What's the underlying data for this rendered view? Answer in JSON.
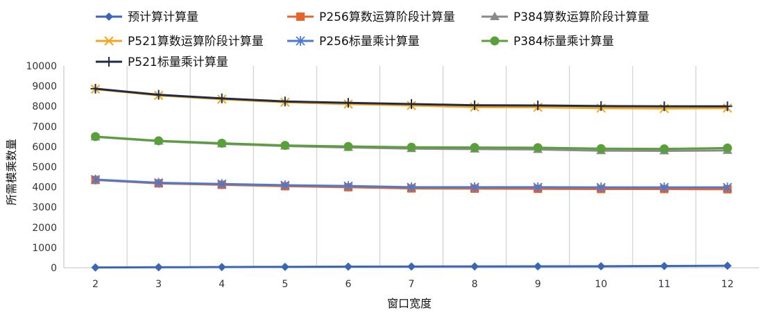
{
  "chart_data": {
    "type": "line",
    "title": "",
    "xlabel": "窗口宽度",
    "ylabel": "所需模乘数量",
    "x": [
      2,
      3,
      4,
      5,
      6,
      7,
      8,
      9,
      10,
      11,
      12
    ],
    "ylim": [
      0,
      10000
    ],
    "yticks": [
      0,
      1000,
      2000,
      3000,
      4000,
      5000,
      6000,
      7000,
      8000,
      9000,
      10000
    ],
    "grid": "vertical",
    "legend": "top",
    "series": [
      {
        "name": "预计算计算量",
        "color": "#3a66b5",
        "marker": "diamond",
        "values": [
          15,
          25,
          35,
          45,
          55,
          60,
          65,
          70,
          75,
          85,
          100
        ]
      },
      {
        "name": "P256算数运算阶段计算量",
        "color": "#e8642a",
        "marker": "square",
        "values": [
          4350,
          4180,
          4110,
          4040,
          3990,
          3930,
          3920,
          3910,
          3900,
          3900,
          3890
        ]
      },
      {
        "name": "P384算数运算阶段计算量",
        "color": "#8a8a8a",
        "marker": "triangle",
        "values": [
          6480,
          6270,
          6140,
          6030,
          5960,
          5900,
          5880,
          5860,
          5800,
          5790,
          5810
        ]
      },
      {
        "name": "P521算数运算阶段计算量",
        "color": "#f2a51f",
        "marker": "x",
        "values": [
          8850,
          8540,
          8350,
          8200,
          8110,
          8040,
          7960,
          7950,
          7910,
          7890,
          7910
        ]
      },
      {
        "name": "P256标量乘计算量",
        "color": "#4a7bd0",
        "marker": "asterisk",
        "values": [
          4370,
          4210,
          4150,
          4090,
          4050,
          3990,
          3990,
          3990,
          3980,
          3980,
          3980
        ]
      },
      {
        "name": "P384标量乘计算量",
        "color": "#5aa03a",
        "marker": "circle",
        "values": [
          6500,
          6290,
          6170,
          6060,
          6010,
          5970,
          5960,
          5950,
          5900,
          5890,
          5930
        ]
      },
      {
        "name": "P521标量乘计算量",
        "color": "#1f2a44",
        "marker": "plus",
        "values": [
          8870,
          8570,
          8390,
          8240,
          8170,
          8110,
          8050,
          8040,
          8010,
          8000,
          8000
        ]
      }
    ]
  }
}
